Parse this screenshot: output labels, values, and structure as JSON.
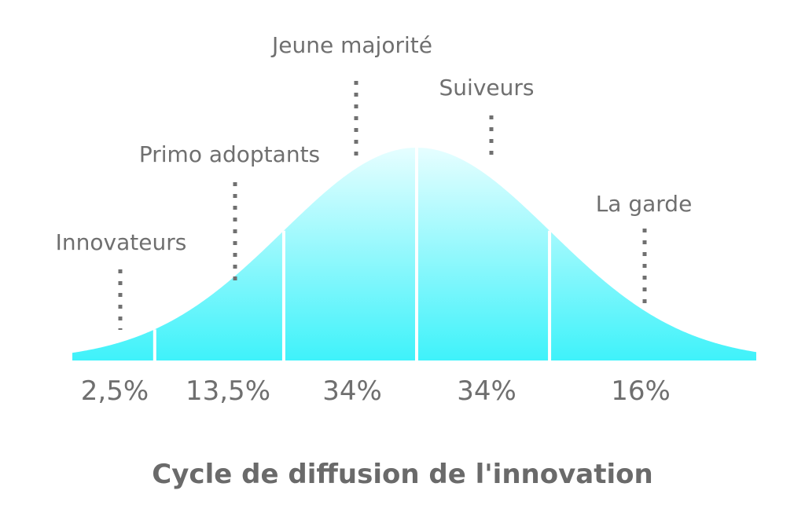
{
  "chart_data": {
    "type": "area",
    "title": "Cycle de diffusion de l'innovation",
    "segments": [
      {
        "name": "Innovateurs",
        "value": 2.5,
        "label": "2,5%"
      },
      {
        "name": "Primo adoptants",
        "value": 13.5,
        "label": "13,5%"
      },
      {
        "name": "Jeune majorité",
        "value": 34,
        "label": "34%"
      },
      {
        "name": "Suiveurs",
        "value": 34,
        "label": "34%"
      },
      {
        "name": "La garde",
        "value": 16,
        "label": "16%"
      }
    ],
    "colors": {
      "curve_top": "#e6feff",
      "curve_bottom": "#3ff2fa",
      "divider": "#ffffff",
      "text": "#6f6f6f",
      "dots": "#707070"
    }
  }
}
